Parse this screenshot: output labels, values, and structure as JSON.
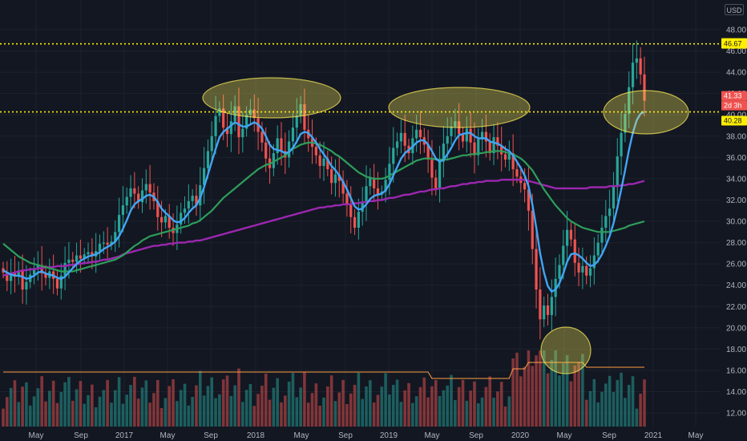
{
  "currency": "USD",
  "colors": {
    "background": "#131722",
    "grid": "#1e222d",
    "up_candle": "#26a69a",
    "down_candle": "#ef5350",
    "ma_fast": "#42a5f5",
    "ma_mid": "#2e9e5b",
    "ma_slow": "#9c27b0",
    "volume_ma": "#ff9f43",
    "level_line": "#ffee00",
    "highlight_ellipse": "#ffee58"
  },
  "price_tags": {
    "high": "46.67",
    "close": "41.33",
    "countdown": "2d 3h",
    "support": "40.28"
  },
  "chart_data": {
    "type": "candlestick",
    "title": "",
    "price_axis": {
      "ticks": [
        "48.00",
        "46.00",
        "44.00",
        "42.00",
        "40.00",
        "38.00",
        "36.00",
        "34.00",
        "32.00",
        "30.00",
        "28.00",
        "26.00",
        "24.00",
        "22.00",
        "20.00",
        "18.00",
        "16.00",
        "14.00",
        "12.00"
      ],
      "ylim": [
        11.5,
        48.8
      ]
    },
    "time_axis": {
      "ticks": [
        "May",
        "Sep",
        "2017",
        "May",
        "Sep",
        "2018",
        "May",
        "Sep",
        "2019",
        "May",
        "Sep",
        "2020",
        "May",
        "Sep",
        "2021",
        "May"
      ],
      "range": [
        "2016-02",
        "2021-07"
      ]
    },
    "horizontal_levels": [
      46.67,
      40.28
    ],
    "candles_weekly_close": [
      25.2,
      24.4,
      25.1,
      24.8,
      25.4,
      23.6,
      24.3,
      25.0,
      25.6,
      25.9,
      25.1,
      24.7,
      25.3,
      24.6,
      23.7,
      24.9,
      26.1,
      26.4,
      26.2,
      26.8,
      26.5,
      26.9,
      27.1,
      26.7,
      27.2,
      27.9,
      28.0,
      27.8,
      28.1,
      29.0,
      30.6,
      31.5,
      32.3,
      33.1,
      32.6,
      31.8,
      32.9,
      33.5,
      32.7,
      31.9,
      30.4,
      29.9,
      30.5,
      29.4,
      28.9,
      29.7,
      30.8,
      31.2,
      31.9,
      32.4,
      31.5,
      33.4,
      35.0,
      36.6,
      38.0,
      39.9,
      40.6,
      38.8,
      38.2,
      39.4,
      40.8,
      37.9,
      38.7,
      40.0,
      40.5,
      39.7,
      38.4,
      37.4,
      35.9,
      35.0,
      36.4,
      37.8,
      36.6,
      36.0,
      37.5,
      38.8,
      39.9,
      41.0,
      38.6,
      37.8,
      37.0,
      36.2,
      35.2,
      35.9,
      34.9,
      33.6,
      34.4,
      33.8,
      32.6,
      31.6,
      30.4,
      29.4,
      30.9,
      31.8,
      33.3,
      34.1,
      33.1,
      32.5,
      32.8,
      33.9,
      35.4,
      36.9,
      37.5,
      38.3,
      37.1,
      36.4,
      37.8,
      38.6,
      37.9,
      37.2,
      35.8,
      34.1,
      33.1,
      35.6,
      37.3,
      38.0,
      38.9,
      39.4,
      38.2,
      37.5,
      38.7,
      37.4,
      36.2,
      37.7,
      38.4,
      37.5,
      36.4,
      37.9,
      37.1,
      36.3,
      35.8,
      36.4,
      34.9,
      34.2,
      33.6,
      33.0,
      31.0,
      27.4,
      23.6,
      20.8,
      22.1,
      21.2,
      22.9,
      24.6,
      25.9,
      27.7,
      29.2,
      28.3,
      26.1,
      25.2,
      25.8,
      24.9,
      25.6,
      26.8,
      28.0,
      29.4,
      30.5,
      31.2,
      33.4,
      36.1,
      38.3,
      40.1,
      42.6,
      44.9,
      45.3,
      43.8,
      41.33
    ],
    "ma_fast_weekly": [
      25.4,
      25.2,
      25.0,
      24.9,
      24.9,
      24.8,
      24.6,
      24.7,
      24.9,
      25.2,
      25.3,
      25.1,
      25.0,
      24.9,
      24.7,
      24.6,
      24.8,
      25.2,
      25.6,
      26.0,
      26.3,
      26.5,
      26.7,
      26.8,
      26.9,
      27.1,
      27.4,
      27.6,
      27.8,
      28.1,
      28.6,
      29.3,
      30.1,
      31.0,
      31.6,
      31.9,
      32.1,
      32.4,
      32.5,
      32.3,
      31.8,
      31.2,
      30.8,
      30.5,
      30.1,
      29.9,
      30.0,
      30.3,
      30.8,
      31.2,
      31.5,
      32.2,
      33.2,
      34.4,
      35.6,
      36.8,
      37.9,
      38.4,
      38.7,
      39.0,
      39.3,
      39.1,
      38.9,
      38.9,
      39.1,
      39.3,
      39.1,
      38.7,
      38.0,
      37.2,
      36.8,
      36.7,
      36.6,
      36.4,
      36.5,
      36.9,
      37.5,
      38.2,
      38.4,
      38.3,
      37.9,
      37.4,
      36.8,
      36.3,
      35.8,
      35.2,
      34.8,
      34.3,
      33.7,
      33.0,
      32.2,
      31.4,
      31.1,
      31.2,
      31.6,
      32.1,
      32.4,
      32.5,
      32.6,
      32.9,
      33.5,
      34.3,
      35.1,
      35.9,
      36.4,
      36.7,
      37.0,
      37.4,
      37.6,
      37.6,
      37.2,
      36.6,
      35.9,
      35.6,
      35.8,
      36.3,
      36.9,
      37.6,
      38.1,
      38.2,
      38.3,
      38.3,
      38.0,
      37.8,
      37.8,
      37.8,
      37.5,
      37.4,
      37.3,
      37.1,
      36.8,
      36.6,
      36.2,
      35.6,
      35.0,
      34.3,
      33.3,
      31.6,
      29.4,
      27.0,
      25.2,
      23.9,
      23.4,
      23.6,
      24.2,
      25.1,
      26.2,
      26.9,
      27.0,
      26.8,
      26.5,
      26.1,
      25.8,
      25.9,
      26.3,
      26.9,
      27.7,
      28.6,
      29.8,
      31.3,
      33.0,
      34.8,
      36.7,
      38.3,
      39.5,
      40.1,
      40.3
    ],
    "ma_mid_weekly": [
      27.9,
      27.6,
      27.3,
      27.0,
      26.7,
      26.5,
      26.3,
      26.1,
      26.0,
      25.9,
      25.8,
      25.7,
      25.6,
      25.5,
      25.4,
      25.3,
      25.3,
      25.3,
      25.3,
      25.4,
      25.5,
      25.6,
      25.7,
      25.8,
      25.9,
      26.0,
      26.1,
      26.2,
      26.3,
      26.4,
      26.6,
      26.8,
      27.1,
      27.4,
      27.7,
      27.9,
      28.2,
      28.4,
      28.6,
      28.7,
      28.8,
      28.9,
      29.0,
      29.1,
      29.2,
      29.3,
      29.4,
      29.5,
      29.6,
      29.8,
      29.9,
      30.1,
      30.4,
      30.7,
      31.0,
      31.4,
      31.8,
      32.2,
      32.5,
      32.8,
      33.1,
      33.4,
      33.7,
      34.0,
      34.3,
      34.6,
      34.9,
      35.1,
      35.3,
      35.4,
      35.6,
      35.8,
      36.0,
      36.2,
      36.5,
      36.8,
      37.0,
      37.2,
      37.3,
      37.4,
      37.4,
      37.3,
      37.2,
      37.0,
      36.8,
      36.6,
      36.3,
      36.1,
      35.8,
      35.5,
      35.2,
      34.9,
      34.6,
      34.4,
      34.2,
      34.1,
      34.0,
      34.0,
      34.0,
      34.1,
      34.3,
      34.5,
      34.7,
      34.9,
      35.1,
      35.3,
      35.5,
      35.7,
      35.8,
      35.9,
      35.9,
      35.9,
      35.8,
      35.8,
      35.8,
      35.8,
      35.9,
      36.0,
      36.1,
      36.2,
      36.2,
      36.3,
      36.3,
      36.4,
      36.4,
      36.5,
      36.5,
      36.6,
      36.6,
      36.6,
      36.5,
      36.4,
      36.3,
      36.1,
      35.9,
      35.6,
      35.2,
      34.8,
      34.2,
      33.6,
      33.0,
      32.5,
      32.0,
      31.5,
      31.1,
      30.7,
      30.3,
      30.0,
      29.8,
      29.6,
      29.4,
      29.3,
      29.2,
      29.1,
      29.0,
      29.0,
      29.0,
      29.0,
      29.1,
      29.2,
      29.3,
      29.4,
      29.6,
      29.7,
      29.8,
      29.9,
      30.0
    ],
    "ma_slow_weekly": [
      24.9,
      25.0,
      25.1,
      25.2,
      25.3,
      25.4,
      25.4,
      25.5,
      25.5,
      25.6,
      25.6,
      25.7,
      25.7,
      25.7,
      25.8,
      25.8,
      25.8,
      25.9,
      25.9,
      26.0,
      26.0,
      26.1,
      26.1,
      26.2,
      26.2,
      26.3,
      26.4,
      26.4,
      26.5,
      26.6,
      26.7,
      26.9,
      27.0,
      27.1,
      27.2,
      27.3,
      27.4,
      27.5,
      27.6,
      27.7,
      27.7,
      27.8,
      27.8,
      27.9,
      27.9,
      28.0,
      28.0,
      28.0,
      28.1,
      28.1,
      28.2,
      28.2,
      28.3,
      28.4,
      28.5,
      28.6,
      28.7,
      28.8,
      28.9,
      29.0,
      29.1,
      29.2,
      29.3,
      29.4,
      29.5,
      29.6,
      29.7,
      29.8,
      29.9,
      30.0,
      30.1,
      30.2,
      30.3,
      30.4,
      30.5,
      30.6,
      30.7,
      30.8,
      30.9,
      31.0,
      31.1,
      31.2,
      31.3,
      31.3,
      31.4,
      31.4,
      31.5,
      31.5,
      31.6,
      31.6,
      31.6,
      31.7,
      31.7,
      31.8,
      31.8,
      31.9,
      31.9,
      32.0,
      32.0,
      32.1,
      32.2,
      32.2,
      32.3,
      32.4,
      32.5,
      32.5,
      32.6,
      32.7,
      32.8,
      32.8,
      32.9,
      33.0,
      33.0,
      33.1,
      33.1,
      33.2,
      33.3,
      33.3,
      33.4,
      33.5,
      33.5,
      33.6,
      33.6,
      33.7,
      33.7,
      33.8,
      33.8,
      33.8,
      33.8,
      33.9,
      33.9,
      33.9,
      33.9,
      33.9,
      33.9,
      33.9,
      33.8,
      33.7,
      33.6,
      33.5,
      33.4,
      33.3,
      33.2,
      33.1,
      33.1,
      33.1,
      33.1,
      33.1,
      33.1,
      33.1,
      33.1,
      33.1,
      33.2,
      33.2,
      33.2,
      33.2,
      33.2,
      33.3,
      33.3,
      33.3,
      33.4,
      33.4,
      33.5,
      33.5,
      33.6,
      33.7,
      33.8
    ]
  }
}
